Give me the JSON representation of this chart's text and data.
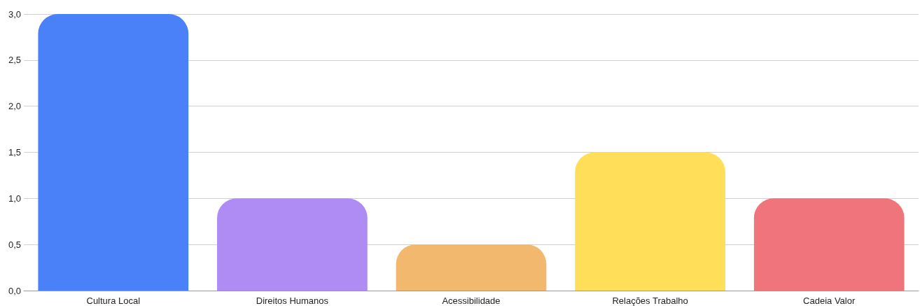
{
  "chart_data": {
    "type": "bar",
    "categories": [
      "Cultura Local",
      "Direitos Humanos",
      "Acessibilidade",
      "Relações Trabalho",
      "Cadeia Valor"
    ],
    "values": [
      3.0,
      1.0,
      0.5,
      1.5,
      1.0
    ],
    "colors": [
      "#4a80f8",
      "#ae8cf4",
      "#f2b86e",
      "#ffde5a",
      "#f0747c"
    ],
    "ylim": [
      0,
      3
    ],
    "yticks": [
      {
        "value": 0,
        "label": "0,0"
      },
      {
        "value": 0.5,
        "label": "0,5"
      },
      {
        "value": 1,
        "label": "1,0"
      },
      {
        "value": 1.5,
        "label": "1,5"
      },
      {
        "value": 2,
        "label": "2,0"
      },
      {
        "value": 2.5,
        "label": "2,5"
      },
      {
        "value": 3,
        "label": "3,0"
      }
    ],
    "grid": "y"
  }
}
